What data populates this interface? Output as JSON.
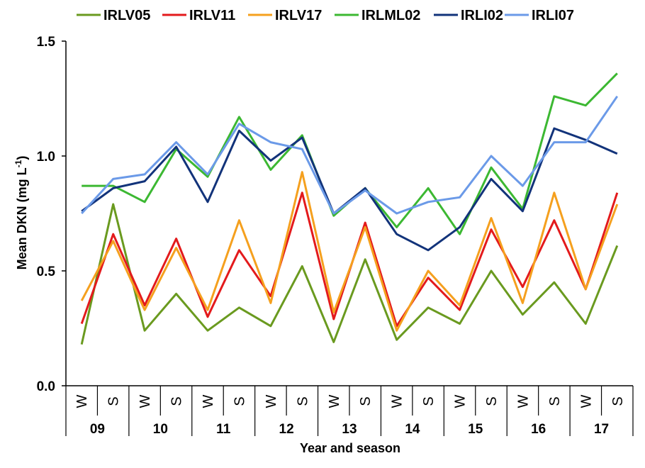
{
  "chart_data": {
    "type": "line",
    "xlabel": "Year and season",
    "ylabel_main": "Mean DKN (mg L",
    "ylabel_sup": "-1",
    "ylabel_close": ")",
    "ylim": [
      0,
      1.5
    ],
    "yticks": [
      {
        "value": 0.0,
        "label": "0.0"
      },
      {
        "value": 0.5,
        "label": "0.5"
      },
      {
        "value": 1.0,
        "label": "1.0"
      },
      {
        "value": 1.5,
        "label": "1.5"
      }
    ],
    "seasons": [
      "W",
      "S",
      "W",
      "S",
      "W",
      "S",
      "W",
      "S",
      "W",
      "S",
      "W",
      "S",
      "W",
      "S",
      "W",
      "S",
      "W",
      "S"
    ],
    "years": [
      "09",
      "10",
      "11",
      "12",
      "13",
      "14",
      "15",
      "16",
      "17"
    ],
    "legend_position": "top",
    "grid": false,
    "series": [
      {
        "name": "IRLV05",
        "color": "#6a9a1f",
        "values": [
          0.18,
          0.79,
          0.24,
          0.4,
          0.24,
          0.34,
          0.26,
          0.52,
          0.19,
          0.55,
          0.2,
          0.34,
          0.27,
          0.5,
          0.31,
          0.45,
          0.27,
          0.61
        ]
      },
      {
        "name": "IRLV11",
        "color": "#e31a1c",
        "values": [
          0.27,
          0.66,
          0.35,
          0.64,
          0.3,
          0.59,
          0.39,
          0.84,
          0.29,
          0.71,
          0.26,
          0.47,
          0.33,
          0.68,
          0.43,
          0.72,
          0.42,
          0.84
        ]
      },
      {
        "name": "IRLV17",
        "color": "#f5a01e",
        "values": [
          0.37,
          0.63,
          0.33,
          0.6,
          0.33,
          0.72,
          0.36,
          0.93,
          0.32,
          0.69,
          0.24,
          0.5,
          0.35,
          0.73,
          0.36,
          0.84,
          0.42,
          0.79
        ]
      },
      {
        "name": "IRLML02",
        "color": "#3cb832",
        "values": [
          0.87,
          0.87,
          0.8,
          1.03,
          0.91,
          1.17,
          0.94,
          1.09,
          0.74,
          0.86,
          0.69,
          0.86,
          0.66,
          0.95,
          0.77,
          1.26,
          1.22,
          1.36
        ]
      },
      {
        "name": "IRLI02",
        "color": "#12337a",
        "values": [
          0.76,
          0.86,
          0.89,
          1.04,
          0.8,
          1.11,
          0.98,
          1.08,
          0.75,
          0.86,
          0.66,
          0.59,
          0.69,
          0.9,
          0.76,
          1.12,
          1.07,
          1.01
        ]
      },
      {
        "name": "IRLI07",
        "color": "#6b9ae8",
        "values": [
          0.75,
          0.9,
          0.92,
          1.06,
          0.92,
          1.14,
          1.06,
          1.03,
          0.75,
          0.85,
          0.75,
          0.8,
          0.82,
          1.0,
          0.87,
          1.06,
          1.06,
          1.26
        ]
      }
    ]
  }
}
